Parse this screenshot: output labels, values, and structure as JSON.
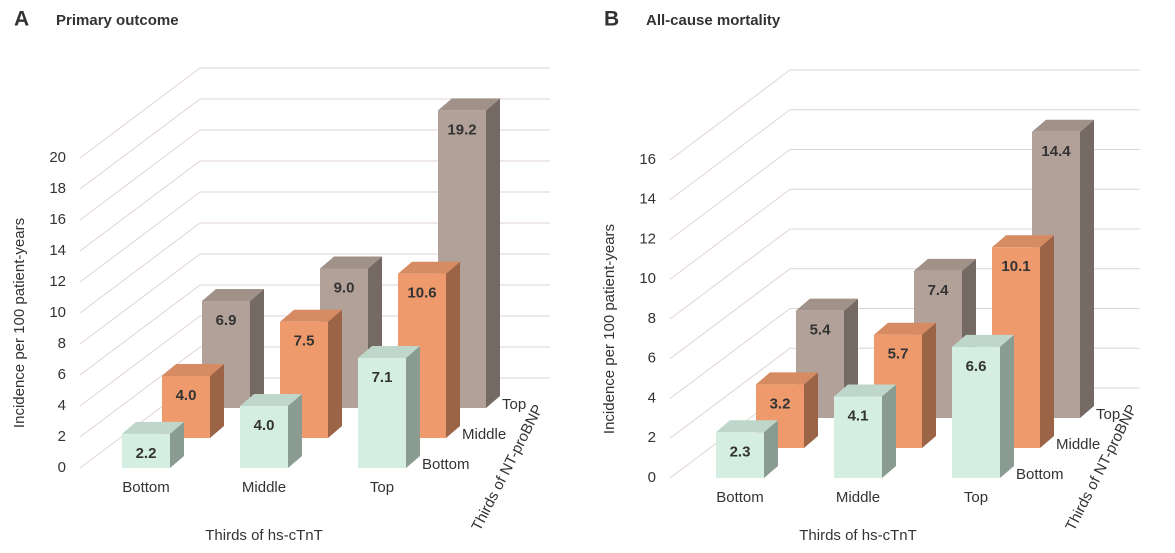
{
  "chart_data": [
    {
      "type": "bar3d",
      "panel": "A",
      "title": "Primary outcome",
      "y_label": "Incidence per 100 patient-years",
      "x_label": "Thirds of hs-cTnT",
      "z_label": "Thirds of NT-proBNP",
      "categories": [
        "Bottom",
        "Middle",
        "Top"
      ],
      "series": [
        {
          "name": "Bottom",
          "color": "#d4eee1",
          "values": [
            2.2,
            4.0,
            7.1
          ],
          "value_labels": [
            "2.2",
            "4.0",
            "7.1"
          ]
        },
        {
          "name": "Middle",
          "color": "#ee9a6d",
          "values": [
            4.0,
            7.5,
            10.6
          ],
          "value_labels": [
            "4.0",
            "7.5",
            "10.6"
          ]
        },
        {
          "name": "Top",
          "color": "#b2a198",
          "values": [
            6.9,
            9.0,
            19.2
          ],
          "value_labels": [
            "6.9",
            "9.0",
            "19.2"
          ]
        }
      ],
      "ylim": [
        0,
        20
      ],
      "yticks": [
        0,
        2,
        4,
        6,
        8,
        10,
        12,
        14,
        16,
        18,
        20
      ],
      "grid": true
    },
    {
      "type": "bar3d",
      "panel": "B",
      "title": "All-cause mortality",
      "y_label": "Incidence per 100 patient-years",
      "x_label": "Thirds of hs-cTnT",
      "z_label": "Thirds of NT-proBNP",
      "categories": [
        "Bottom",
        "Middle",
        "Top"
      ],
      "series": [
        {
          "name": "Bottom",
          "color": "#d4eee1",
          "values": [
            2.3,
            4.1,
            6.6
          ],
          "value_labels": [
            "2.3",
            "4.1",
            "6.6"
          ]
        },
        {
          "name": "Middle",
          "color": "#ee9a6d",
          "values": [
            3.2,
            5.7,
            10.1
          ],
          "value_labels": [
            "3.2",
            "5.7",
            "10.1"
          ]
        },
        {
          "name": "Top",
          "color": "#b2a198",
          "values": [
            5.4,
            7.4,
            14.4
          ],
          "value_labels": [
            "5.4",
            "7.4",
            "14.4"
          ]
        }
      ],
      "ylim": [
        0,
        16
      ],
      "yticks": [
        0,
        2,
        4,
        6,
        8,
        10,
        12,
        14,
        16
      ],
      "grid": true
    }
  ]
}
